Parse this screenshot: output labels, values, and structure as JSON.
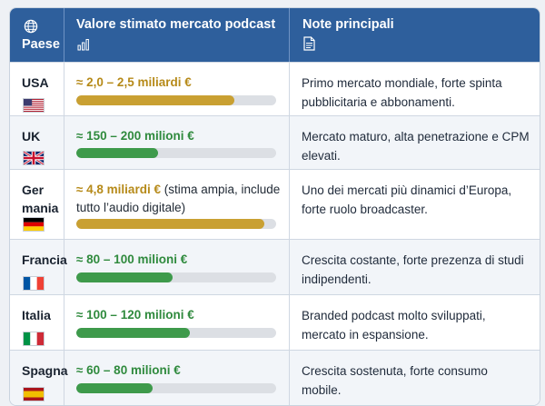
{
  "header": {
    "country": "Paese",
    "value": "Valore stimato mercato podcast",
    "notes": "Note principali",
    "icons": {
      "country": "globe-icon",
      "value": "bar-chart-icon",
      "notes": "document-icon"
    }
  },
  "rows": [
    {
      "country": "USA",
      "flag": "flag-usa-icon",
      "value_text": "≈ 2,0 – 2,5 miliardi €",
      "value_extra": "",
      "bar_fraction": 0.79,
      "bar_color": "#c9a032",
      "note": "Primo mercato mondiale, forte spinta pubblicitaria e abbonamenti."
    },
    {
      "country": "UK",
      "flag": "flag-uk-icon",
      "value_text": "≈ 150 – 200 milioni €",
      "value_extra": "",
      "bar_fraction": 0.41,
      "bar_color": "#3e9a4b",
      "note": "Mercato maturo, alta penetrazione e CPM elevati."
    },
    {
      "country": "Germania",
      "country_lines": [
        "Ger",
        "mania"
      ],
      "flag": "flag-germany-icon",
      "value_text": "≈ 4,8 miliardi €",
      "value_extra": " (stima ampia, include tutto l’audio digitale)",
      "bar_fraction": 0.94,
      "bar_color": "#c9a032",
      "note": "Uno dei mercati più dinamici d’Europa, forte ruolo broadcaster."
    },
    {
      "country": "Francia",
      "flag": "flag-france-icon",
      "value_text": "≈ 80 – 100 milioni €",
      "value_extra": "",
      "bar_fraction": 0.48,
      "bar_color": "#3e9a4b",
      "note": "Crescita costante, forte prezenza di studi indipendenti."
    },
    {
      "country": "Italia",
      "flag": "flag-italy-icon",
      "value_text": "≈ 100 – 120 milioni €",
      "value_extra": "",
      "bar_fraction": 0.57,
      "bar_color": "#3e9a4b",
      "note": "Branded podcast molto sviluppati, mercato in espansione."
    },
    {
      "country": "Spagna",
      "flag": "flag-spain-icon",
      "value_text": "≈ 60 – 80 milioni €",
      "value_extra": "",
      "bar_fraction": 0.38,
      "bar_color": "#3e9a4b",
      "note": "Crescita sostenuta, forte consumo mobile."
    }
  ]
}
